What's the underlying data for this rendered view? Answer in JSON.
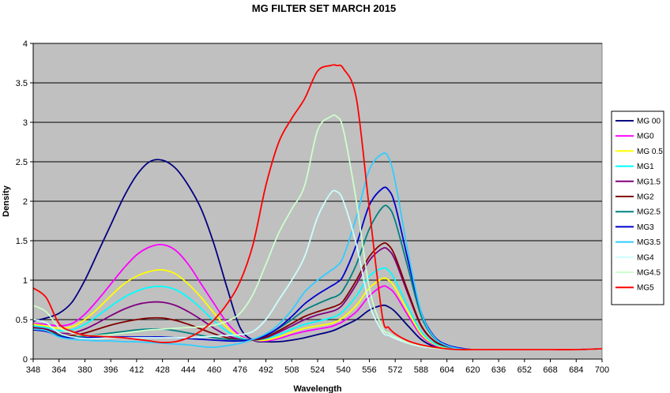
{
  "chart_data": {
    "type": "line",
    "title": "MG FILTER SET MARCH 2015",
    "xlabel": "Wavelength",
    "ylabel": "Density",
    "xlim": [
      348,
      700
    ],
    "ylim": [
      0,
      4
    ],
    "x_ticks": [
      348,
      364,
      380,
      396,
      412,
      428,
      444,
      460,
      476,
      492,
      508,
      524,
      540,
      556,
      572,
      588,
      604,
      620,
      636,
      652,
      668,
      684,
      700
    ],
    "y_ticks": [
      0,
      0.5,
      1,
      1.5,
      2,
      2.5,
      3,
      3.5,
      4
    ],
    "y_tick_labels": [
      "0",
      "0.5",
      "1",
      "1.5",
      "2",
      "2.5",
      "3",
      "3.5",
      "4"
    ],
    "grid": "horizontal",
    "legend_position": "right",
    "plot_background": "#c0c0c0",
    "x": [
      348,
      356,
      364,
      372,
      380,
      388,
      396,
      404,
      412,
      420,
      428,
      436,
      444,
      452,
      460,
      468,
      476,
      484,
      492,
      500,
      508,
      516,
      524,
      532,
      536,
      540,
      548,
      556,
      564,
      568,
      572,
      580,
      588,
      596,
      604,
      612,
      620,
      636,
      652,
      668,
      684,
      700
    ],
    "series": [
      {
        "name": "MG 00",
        "color": "#000080",
        "values": [
          0.48,
          0.52,
          0.58,
          0.72,
          1.0,
          1.35,
          1.7,
          2.05,
          2.33,
          2.5,
          2.52,
          2.42,
          2.2,
          1.9,
          1.45,
          0.9,
          0.4,
          0.24,
          0.22,
          0.22,
          0.24,
          0.27,
          0.31,
          0.35,
          0.38,
          0.42,
          0.5,
          0.62,
          0.68,
          0.66,
          0.6,
          0.42,
          0.25,
          0.16,
          0.13,
          0.12,
          0.12,
          0.12,
          0.12,
          0.12,
          0.12,
          0.13
        ]
      },
      {
        "name": "MG0",
        "color": "#ff00ff",
        "values": [
          0.45,
          0.44,
          0.42,
          0.45,
          0.57,
          0.75,
          0.95,
          1.15,
          1.32,
          1.42,
          1.45,
          1.38,
          1.2,
          0.95,
          0.7,
          0.46,
          0.3,
          0.24,
          0.23,
          0.26,
          0.31,
          0.35,
          0.38,
          0.41,
          0.44,
          0.48,
          0.6,
          0.8,
          0.92,
          0.9,
          0.82,
          0.55,
          0.3,
          0.18,
          0.14,
          0.13,
          0.12,
          0.12,
          0.12,
          0.12,
          0.12,
          0.13
        ]
      },
      {
        "name": "MG 0.5",
        "color": "#ffff00",
        "values": [
          0.44,
          0.42,
          0.39,
          0.41,
          0.5,
          0.64,
          0.8,
          0.95,
          1.05,
          1.11,
          1.13,
          1.08,
          0.95,
          0.78,
          0.58,
          0.4,
          0.28,
          0.24,
          0.24,
          0.28,
          0.34,
          0.39,
          0.42,
          0.45,
          0.48,
          0.53,
          0.68,
          0.9,
          1.02,
          1.0,
          0.9,
          0.6,
          0.32,
          0.19,
          0.14,
          0.13,
          0.12,
          0.12,
          0.12,
          0.12,
          0.12,
          0.13
        ]
      },
      {
        "name": "MG1",
        "color": "#00ffff",
        "values": [
          0.42,
          0.4,
          0.36,
          0.37,
          0.44,
          0.55,
          0.67,
          0.78,
          0.86,
          0.91,
          0.92,
          0.88,
          0.78,
          0.64,
          0.48,
          0.35,
          0.27,
          0.24,
          0.26,
          0.31,
          0.38,
          0.44,
          0.48,
          0.52,
          0.55,
          0.61,
          0.8,
          1.05,
          1.15,
          1.12,
          1.0,
          0.66,
          0.35,
          0.2,
          0.15,
          0.13,
          0.12,
          0.12,
          0.12,
          0.12,
          0.12,
          0.13
        ]
      },
      {
        "name": "MG1.5",
        "color": "#800080",
        "values": [
          0.4,
          0.38,
          0.33,
          0.33,
          0.38,
          0.46,
          0.55,
          0.63,
          0.69,
          0.72,
          0.72,
          0.68,
          0.6,
          0.5,
          0.39,
          0.3,
          0.25,
          0.24,
          0.27,
          0.34,
          0.42,
          0.5,
          0.56,
          0.6,
          0.63,
          0.7,
          0.95,
          1.25,
          1.4,
          1.38,
          1.25,
          0.82,
          0.42,
          0.23,
          0.16,
          0.13,
          0.12,
          0.12,
          0.12,
          0.12,
          0.12,
          0.13
        ]
      },
      {
        "name": "MG2",
        "color": "#800000",
        "values": [
          0.39,
          0.37,
          0.31,
          0.3,
          0.33,
          0.38,
          0.43,
          0.47,
          0.5,
          0.52,
          0.52,
          0.49,
          0.44,
          0.38,
          0.32,
          0.27,
          0.24,
          0.24,
          0.28,
          0.36,
          0.45,
          0.54,
          0.6,
          0.65,
          0.68,
          0.74,
          1.0,
          1.3,
          1.46,
          1.44,
          1.3,
          0.85,
          0.43,
          0.23,
          0.16,
          0.13,
          0.12,
          0.12,
          0.12,
          0.12,
          0.12,
          0.13
        ]
      },
      {
        "name": "MG2.5",
        "color": "#008080",
        "values": [
          0.38,
          0.36,
          0.3,
          0.28,
          0.29,
          0.31,
          0.33,
          0.35,
          0.37,
          0.38,
          0.38,
          0.36,
          0.33,
          0.3,
          0.27,
          0.25,
          0.24,
          0.25,
          0.3,
          0.39,
          0.5,
          0.62,
          0.7,
          0.77,
          0.8,
          0.88,
          1.2,
          1.65,
          1.92,
          1.92,
          1.75,
          1.15,
          0.55,
          0.27,
          0.17,
          0.13,
          0.12,
          0.12,
          0.12,
          0.12,
          0.12,
          0.13
        ]
      },
      {
        "name": "MG3",
        "color": "#0000cc",
        "values": [
          0.37,
          0.35,
          0.29,
          0.27,
          0.27,
          0.28,
          0.28,
          0.28,
          0.28,
          0.28,
          0.28,
          0.27,
          0.26,
          0.25,
          0.24,
          0.23,
          0.23,
          0.25,
          0.3,
          0.4,
          0.54,
          0.7,
          0.82,
          0.92,
          0.97,
          1.06,
          1.45,
          1.95,
          2.16,
          2.14,
          1.95,
          1.25,
          0.6,
          0.29,
          0.18,
          0.14,
          0.12,
          0.12,
          0.12,
          0.12,
          0.12,
          0.13
        ]
      },
      {
        "name": "MG3.5",
        "color": "#33ccff",
        "values": [
          0.38,
          0.36,
          0.28,
          0.25,
          0.24,
          0.23,
          0.23,
          0.22,
          0.22,
          0.21,
          0.2,
          0.19,
          0.18,
          0.16,
          0.15,
          0.17,
          0.2,
          0.25,
          0.32,
          0.44,
          0.62,
          0.85,
          1.0,
          1.12,
          1.18,
          1.3,
          1.8,
          2.4,
          2.6,
          2.55,
          2.25,
          1.35,
          0.6,
          0.28,
          0.17,
          0.13,
          0.12,
          0.12,
          0.12,
          0.12,
          0.12,
          0.13
        ]
      },
      {
        "name": "MG4",
        "color": "#ccffff",
        "values": [
          0.5,
          0.46,
          0.33,
          0.28,
          0.26,
          0.26,
          0.27,
          0.27,
          0.27,
          0.27,
          0.27,
          0.27,
          0.27,
          0.28,
          0.29,
          0.3,
          0.31,
          0.35,
          0.5,
          0.75,
          1.0,
          1.3,
          1.8,
          2.1,
          2.12,
          2.0,
          1.45,
          0.7,
          0.35,
          0.3,
          0.26,
          0.2,
          0.16,
          0.14,
          0.13,
          0.12,
          0.12,
          0.12,
          0.12,
          0.12,
          0.12,
          0.13
        ]
      },
      {
        "name": "MG4.5",
        "color": "#ccffcc",
        "values": [
          0.68,
          0.6,
          0.4,
          0.33,
          0.3,
          0.3,
          0.31,
          0.33,
          0.35,
          0.37,
          0.38,
          0.39,
          0.4,
          0.41,
          0.43,
          0.48,
          0.58,
          0.82,
          1.2,
          1.6,
          1.9,
          2.2,
          2.9,
          3.07,
          3.07,
          2.9,
          2.0,
          0.9,
          0.4,
          0.33,
          0.28,
          0.21,
          0.17,
          0.14,
          0.13,
          0.12,
          0.12,
          0.12,
          0.12,
          0.12,
          0.12,
          0.13
        ]
      },
      {
        "name": "MG5",
        "color": "#ff0000",
        "values": [
          0.9,
          0.78,
          0.45,
          0.35,
          0.3,
          0.29,
          0.28,
          0.27,
          0.25,
          0.23,
          0.21,
          0.22,
          0.27,
          0.36,
          0.5,
          0.7,
          0.98,
          1.45,
          2.2,
          2.75,
          3.05,
          3.3,
          3.65,
          3.72,
          3.72,
          3.68,
          3.3,
          1.9,
          0.55,
          0.4,
          0.32,
          0.23,
          0.18,
          0.15,
          0.13,
          0.12,
          0.12,
          0.12,
          0.12,
          0.12,
          0.12,
          0.13
        ]
      }
    ]
  }
}
